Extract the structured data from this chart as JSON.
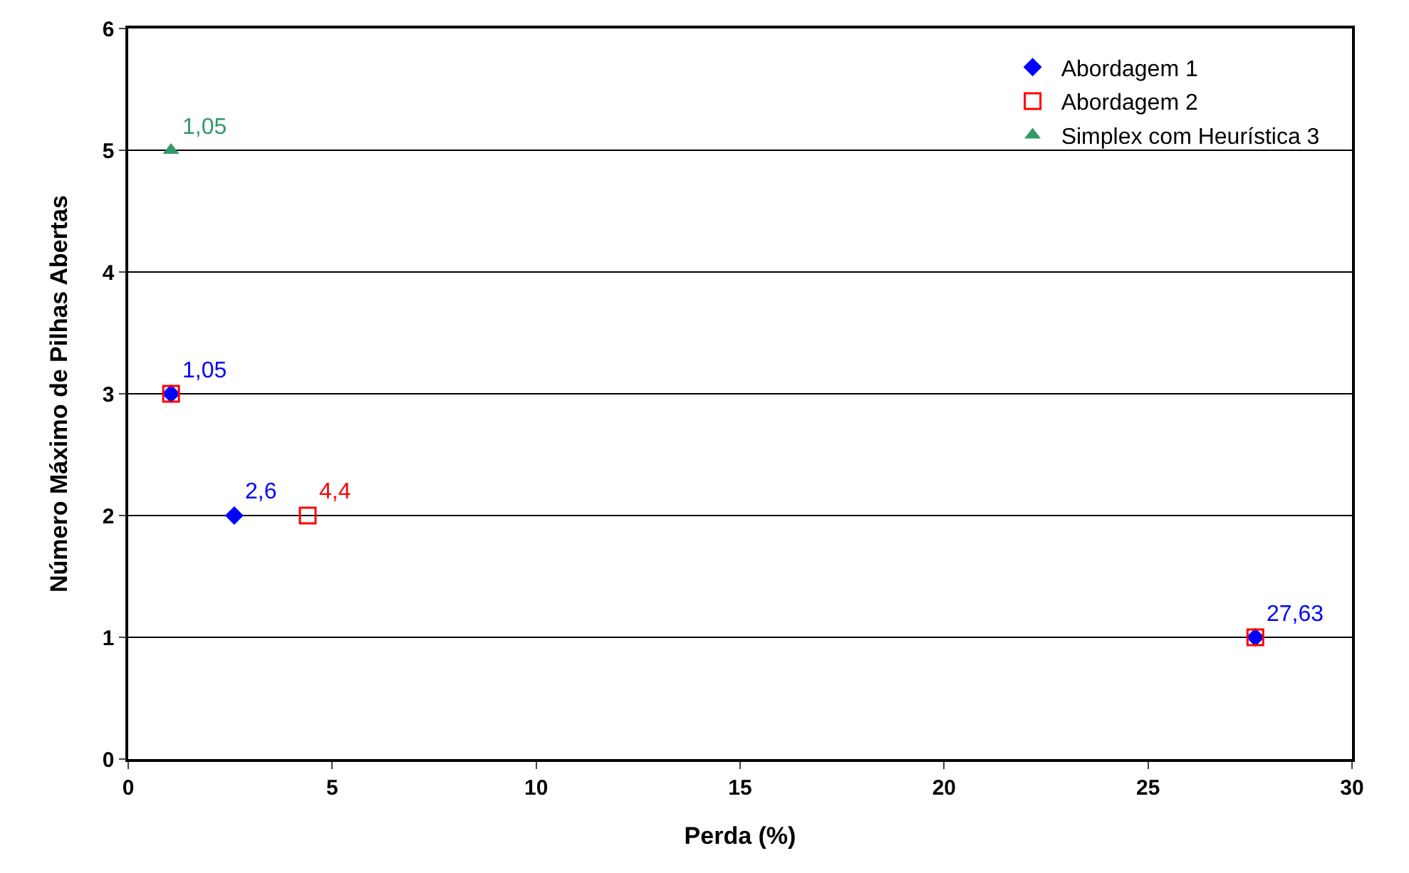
{
  "chart_data": {
    "type": "scatter",
    "xlabel": "Perda (%)",
    "ylabel": "Número Máximo de Pilhas Abertas",
    "xlim": [
      0,
      30
    ],
    "xticks": [
      0,
      5,
      10,
      15,
      20,
      25,
      30
    ],
    "ylim": [
      0,
      6
    ],
    "yticks": [
      0,
      1,
      2,
      3,
      4,
      5,
      6
    ],
    "grid": "y",
    "legend": "top right",
    "series": [
      {
        "name": "Abordagem 1",
        "color": "#0000ff",
        "marker": "diamond",
        "x": [
          1.05,
          2.6,
          27.63
        ],
        "values": [
          3,
          2,
          1
        ]
      },
      {
        "name": "Abordagem 2",
        "color": "#ff0000",
        "marker": "square",
        "x": [
          1.05,
          4.4,
          27.63
        ],
        "values": [
          3,
          2,
          1
        ]
      },
      {
        "name": "Simplex com Heurística 3",
        "color": "#339966",
        "marker": "triangle",
        "x": [
          1.05
        ],
        "values": [
          5
        ]
      }
    ],
    "annotations": [
      {
        "text": "1,05",
        "x": 1.05,
        "y": 5
      },
      {
        "text": "1,05",
        "x": 1.05,
        "y": 3
      },
      {
        "text": "2,6",
        "x": 2.6,
        "y": 2
      },
      {
        "text": "4,4",
        "x": 4.4,
        "y": 2
      },
      {
        "text": "27,63",
        "x": 27.63,
        "y": 1
      }
    ]
  }
}
